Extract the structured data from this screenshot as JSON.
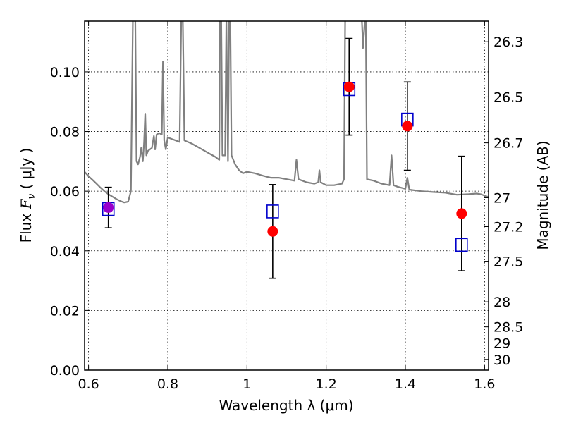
{
  "chart_data": {
    "type": "scatter",
    "title": "",
    "xlabel": "Wavelength  λ (μm)",
    "ylabel": {
      "prefix": "Flux  ",
      "F": "F",
      "sub": "ν",
      "units": "  ( μJy )"
    },
    "y2label": "Magnitude (AB)",
    "xlim": [
      0.59,
      1.61
    ],
    "ylim": [
      0.0,
      0.117
    ],
    "grid": true,
    "xticks": [
      {
        "value": 0.6,
        "label": "0.6"
      },
      {
        "value": 0.8,
        "label": "0.8"
      },
      {
        "value": 1.0,
        "label": "1"
      },
      {
        "value": 1.2,
        "label": "1.2"
      },
      {
        "value": 1.4,
        "label": "1.4"
      },
      {
        "value": 1.6,
        "label": "1.6"
      }
    ],
    "yticks": [
      {
        "value": 0.0,
        "label": "0.00"
      },
      {
        "value": 0.02,
        "label": "0.02"
      },
      {
        "value": 0.04,
        "label": "0.04"
      },
      {
        "value": 0.06,
        "label": "0.06"
      },
      {
        "value": 0.08,
        "label": "0.08"
      },
      {
        "value": 0.1,
        "label": "0.10"
      }
    ],
    "magnitude_ticks": [
      {
        "label": "26.3",
        "flux": 0.1101
      },
      {
        "label": "26.5",
        "flux": 0.0916
      },
      {
        "label": "26.7",
        "flux": 0.0762
      },
      {
        "label": "27",
        "flux": 0.0578
      },
      {
        "label": "27.2",
        "flux": 0.0481
      },
      {
        "label": "27.5",
        "flux": 0.0365
      },
      {
        "label": "28",
        "flux": 0.0229
      },
      {
        "label": "28.5",
        "flux": 0.0145
      },
      {
        "label": "29",
        "flux": 0.0091
      },
      {
        "label": "30",
        "flux": 0.0036
      }
    ],
    "series": [
      {
        "kind": "observed",
        "marker": "filled-circle",
        "color": "#ff0000",
        "points": [
          {
            "x": 0.65,
            "y": 0.0545,
            "err": 0.0068,
            "color": "#9900cc"
          },
          {
            "x": 1.065,
            "y": 0.0465,
            "err": 0.0157
          },
          {
            "x": 1.258,
            "y": 0.095,
            "err": 0.0162
          },
          {
            "x": 1.405,
            "y": 0.0818,
            "err": 0.0148
          },
          {
            "x": 1.542,
            "y": 0.0525,
            "err": 0.0192
          }
        ]
      },
      {
        "kind": "model-photometry",
        "marker": "open-square",
        "color": "#0000cc",
        "points": [
          {
            "x": 0.65,
            "y": 0.054
          },
          {
            "x": 1.065,
            "y": 0.0532
          },
          {
            "x": 1.258,
            "y": 0.0942
          },
          {
            "x": 1.405,
            "y": 0.084
          },
          {
            "x": 1.542,
            "y": 0.042
          }
        ]
      },
      {
        "kind": "model-sed",
        "marker": "line",
        "color": "#808080",
        "points": [
          [
            0.59,
            0.0665
          ],
          [
            0.6,
            0.065
          ],
          [
            0.61,
            0.0638
          ],
          [
            0.62,
            0.0625
          ],
          [
            0.63,
            0.0612
          ],
          [
            0.64,
            0.06
          ],
          [
            0.65,
            0.059
          ],
          [
            0.66,
            0.0582
          ],
          [
            0.67,
            0.0574
          ],
          [
            0.68,
            0.0567
          ],
          [
            0.69,
            0.0562
          ],
          [
            0.7,
            0.0565
          ],
          [
            0.707,
            0.06
          ],
          [
            0.712,
            0.118
          ],
          [
            0.718,
            0.118
          ],
          [
            0.721,
            0.07
          ],
          [
            0.725,
            0.069
          ],
          [
            0.73,
            0.0715
          ],
          [
            0.733,
            0.0745
          ],
          [
            0.737,
            0.07
          ],
          [
            0.74,
            0.076
          ],
          [
            0.743,
            0.086
          ],
          [
            0.746,
            0.072
          ],
          [
            0.75,
            0.0735
          ],
          [
            0.755,
            0.074
          ],
          [
            0.76,
            0.0745
          ],
          [
            0.765,
            0.0785
          ],
          [
            0.768,
            0.074
          ],
          [
            0.772,
            0.079
          ],
          [
            0.778,
            0.0795
          ],
          [
            0.785,
            0.079
          ],
          [
            0.788,
            0.1035
          ],
          [
            0.791,
            0.077
          ],
          [
            0.795,
            0.074
          ],
          [
            0.8,
            0.078
          ],
          [
            0.81,
            0.0775
          ],
          [
            0.82,
            0.077
          ],
          [
            0.83,
            0.0765
          ],
          [
            0.834,
            0.118
          ],
          [
            0.838,
            0.118
          ],
          [
            0.842,
            0.077
          ],
          [
            0.86,
            0.076
          ],
          [
            0.88,
            0.0745
          ],
          [
            0.9,
            0.073
          ],
          [
            0.92,
            0.0715
          ],
          [
            0.93,
            0.0705
          ],
          [
            0.932,
            0.118
          ],
          [
            0.935,
            0.118
          ],
          [
            0.938,
            0.072
          ],
          [
            0.945,
            0.072
          ],
          [
            0.948,
            0.118
          ],
          [
            0.952,
            0.07
          ],
          [
            0.955,
            0.118
          ],
          [
            0.958,
            0.118
          ],
          [
            0.961,
            0.072
          ],
          [
            0.97,
            0.069
          ],
          [
            0.98,
            0.067
          ],
          [
            0.99,
            0.066
          ],
          [
            1.0,
            0.0665
          ],
          [
            1.02,
            0.066
          ],
          [
            1.04,
            0.0652
          ],
          [
            1.06,
            0.0645
          ],
          [
            1.08,
            0.0645
          ],
          [
            1.1,
            0.064
          ],
          [
            1.12,
            0.0635
          ],
          [
            1.125,
            0.0705
          ],
          [
            1.13,
            0.064
          ],
          [
            1.15,
            0.063
          ],
          [
            1.17,
            0.0625
          ],
          [
            1.18,
            0.063
          ],
          [
            1.183,
            0.067
          ],
          [
            1.186,
            0.063
          ],
          [
            1.2,
            0.062
          ],
          [
            1.22,
            0.062
          ],
          [
            1.24,
            0.0625
          ],
          [
            1.245,
            0.064
          ],
          [
            1.248,
            0.118
          ],
          [
            1.29,
            0.118
          ],
          [
            1.293,
            0.108
          ],
          [
            1.298,
            0.118
          ],
          [
            1.3,
            0.118
          ],
          [
            1.303,
            0.064
          ],
          [
            1.32,
            0.0635
          ],
          [
            1.34,
            0.0625
          ],
          [
            1.36,
            0.062
          ],
          [
            1.365,
            0.072
          ],
          [
            1.37,
            0.062
          ],
          [
            1.38,
            0.0615
          ],
          [
            1.4,
            0.0608
          ],
          [
            1.405,
            0.0645
          ],
          [
            1.41,
            0.0605
          ],
          [
            1.44,
            0.06
          ],
          [
            1.47,
            0.0597
          ],
          [
            1.5,
            0.0595
          ],
          [
            1.53,
            0.0588
          ],
          [
            1.56,
            0.059
          ],
          [
            1.58,
            0.0592
          ],
          [
            1.59,
            0.059
          ],
          [
            1.6,
            0.0585
          ],
          [
            1.61,
            0.058
          ]
        ]
      }
    ]
  }
}
